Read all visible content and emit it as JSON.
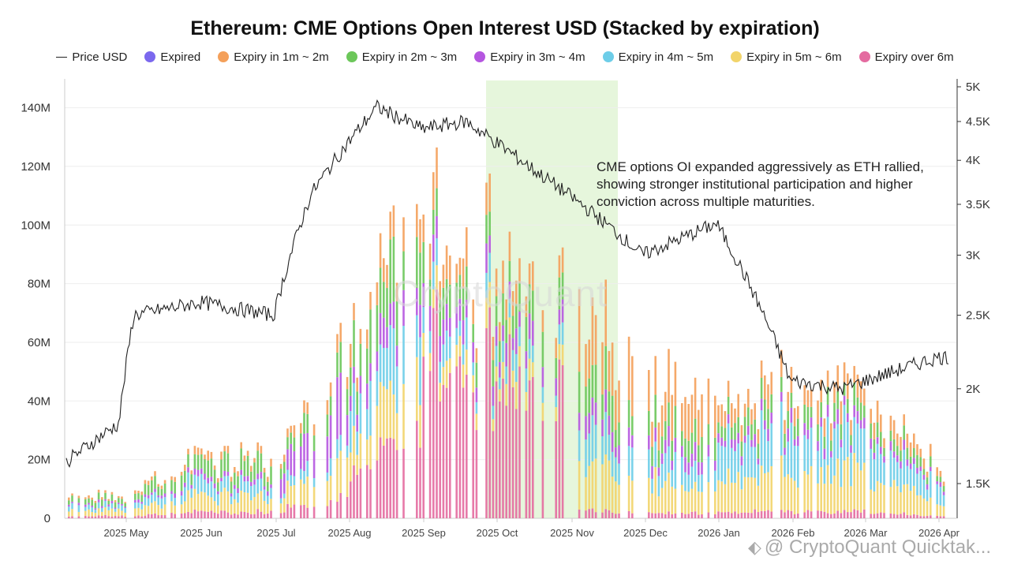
{
  "title": "Ethereum: CME Options Open Interest USD (Stacked by expiration)",
  "legend": [
    {
      "label": "Price USD",
      "type": "line",
      "color": "#222222"
    },
    {
      "label": "Expired",
      "type": "dot",
      "color": "#7b68ee"
    },
    {
      "label": "Expiry in 1m ~ 2m",
      "type": "dot",
      "color": "#f4a05a"
    },
    {
      "label": "Expiry in 2m ~ 3m",
      "type": "dot",
      "color": "#6cc75a"
    },
    {
      "label": "Expiry in 3m ~ 4m",
      "type": "dot",
      "color": "#b556e0"
    },
    {
      "label": "Expiry in 4m ~ 5m",
      "type": "dot",
      "color": "#6dcde8"
    },
    {
      "label": "Expiry in 5m ~ 6m",
      "type": "dot",
      "color": "#f2d46a"
    },
    {
      "label": "Expiry over 6m",
      "type": "dot",
      "color": "#e46ba0"
    }
  ],
  "annotation": "CME options OI expanded aggressively as ETH rallied, showing stronger institutional participation and higher conviction across multiple maturities.",
  "watermark": "CryptoQuant",
  "footer": "@ CryptoQuant Quicktak...",
  "chart_data": {
    "type": "bar",
    "stacked": true,
    "x_ticks": [
      "2025 May",
      "2025 Jun",
      "2025 Jul",
      "2025 Aug",
      "2025 Sep",
      "2025 Oct",
      "2025 Nov",
      "2025 Dec",
      "2026 Jan",
      "2026 Feb",
      "2026 Mar",
      "2026 Apr"
    ],
    "y_left_ticks": [
      "0",
      "20M",
      "40M",
      "60M",
      "80M",
      "100M",
      "120M",
      "140M"
    ],
    "y_left_range": [
      0,
      145000000
    ],
    "y_right_ticks": [
      "1.5K",
      "2K",
      "2.5K",
      "3K",
      "3.5K",
      "4K",
      "4.5K",
      "5K"
    ],
    "y_right_scale": "log",
    "y_right_range": [
      1350,
      5000
    ],
    "highlight": {
      "from": "2025 Oct",
      "to": "2025 Nov"
    },
    "series": [
      {
        "name": "Expired",
        "color": "#7b68ee"
      },
      {
        "name": "Expiry in 1m ~ 2m",
        "color": "#f4a05a"
      },
      {
        "name": "Expiry in 2m ~ 3m",
        "color": "#6cc75a"
      },
      {
        "name": "Expiry in 3m ~ 4m",
        "color": "#b556e0"
      },
      {
        "name": "Expiry in 4m ~ 5m",
        "color": "#6dcde8"
      },
      {
        "name": "Expiry in 5m ~ 6m",
        "color": "#f2d46a"
      },
      {
        "name": "Expiry over 6m",
        "color": "#e46ba0"
      }
    ],
    "total_oi_keypoints": [
      {
        "x": "2025 Apr",
        "y": 8000000
      },
      {
        "x": "2025 May",
        "y": 8000000
      },
      {
        "x": "2025 Jun",
        "y": 22000000
      },
      {
        "x": "2025 Jul",
        "y": 20000000
      },
      {
        "x": "2025 Aug",
        "y": 60000000
      },
      {
        "x": "2025 Sep",
        "y": 110000000
      },
      {
        "x": "2025 Oct",
        "y": 80000000
      },
      {
        "x": "2025 Nov",
        "y": 68000000
      },
      {
        "x": "2025 Dec",
        "y": 50000000
      },
      {
        "x": "2026 Jan",
        "y": 40000000
      },
      {
        "x": "2026 Feb",
        "y": 45000000
      },
      {
        "x": "2026 Mar",
        "y": 45000000
      },
      {
        "x": "2026 Apr",
        "y": 18000000
      }
    ],
    "price_keypoints": [
      {
        "x": "2025 Apr",
        "y": 1550
      },
      {
        "x": "2025 May",
        "y": 1800
      },
      {
        "x": "2025 May",
        "y": 2500
      },
      {
        "x": "2025 Jun",
        "y": 2600
      },
      {
        "x": "2025 Jul",
        "y": 2500
      },
      {
        "x": "2025 Jul",
        "y": 3600
      },
      {
        "x": "2025 Aug",
        "y": 4700
      },
      {
        "x": "2025 Sep",
        "y": 4400
      },
      {
        "x": "2025 Oct",
        "y": 4500
      },
      {
        "x": "2025 Nov",
        "y": 3900
      },
      {
        "x": "2025 Dec",
        "y": 3000
      },
      {
        "x": "2026 Jan",
        "y": 3300
      },
      {
        "x": "2026 Feb",
        "y": 2050
      },
      {
        "x": "2026 Mar",
        "y": 2000
      },
      {
        "x": "2026 Apr",
        "y": 2200
      }
    ]
  }
}
